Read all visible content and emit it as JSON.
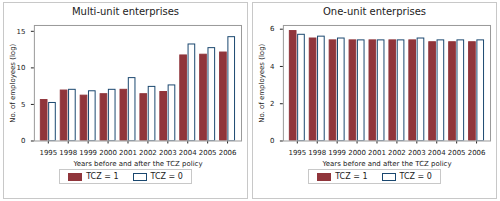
{
  "chart_data": [
    {
      "type": "bar",
      "title": "Multi-unit enterprises",
      "x_label": "Years before and after the TCZ policy",
      "y_label": "No. of employees (log)",
      "categories": [
        "1995",
        "1998",
        "1999",
        "2000",
        "2001",
        "2002",
        "2003",
        "2004",
        "2005",
        "2006"
      ],
      "series": [
        {
          "name": "TCZ = 1",
          "color": "#90353b",
          "values": [
            5.6,
            6.9,
            6.2,
            6.4,
            7.0,
            6.4,
            6.7,
            11.7,
            11.8,
            12.1
          ]
        },
        {
          "name": "TCZ = 0",
          "color": "#1a476f",
          "marker": "hollow",
          "values": [
            5.2,
            7.0,
            6.8,
            7.0,
            8.6,
            7.4,
            7.6,
            13.2,
            12.7,
            14.2
          ]
        }
      ],
      "ylim": [
        0,
        15.8
      ],
      "yticks": [
        0,
        5,
        10,
        15
      ],
      "grid": false,
      "legend": "bottom"
    },
    {
      "type": "bar",
      "title": "One-unit enterprises",
      "x_label": "Years before and after the TCZ policy",
      "y_label": "No. of employees (log)",
      "categories": [
        "1995",
        "1998",
        "1999",
        "2000",
        "2001",
        "2002",
        "2003",
        "2004",
        "2005",
        "2006"
      ],
      "series": [
        {
          "name": "TCZ = 1",
          "color": "#90353b",
          "values": [
            5.9,
            5.5,
            5.4,
            5.4,
            5.4,
            5.4,
            5.4,
            5.3,
            5.3,
            5.3
          ]
        },
        {
          "name": "TCZ = 0",
          "color": "#1a476f",
          "marker": "hollow",
          "values": [
            5.7,
            5.6,
            5.5,
            5.4,
            5.4,
            5.4,
            5.5,
            5.4,
            5.4,
            5.4
          ]
        }
      ],
      "ylim": [
        0,
        6.2
      ],
      "yticks": [
        0,
        2,
        4,
        6
      ],
      "grid": false,
      "legend": "bottom"
    }
  ]
}
